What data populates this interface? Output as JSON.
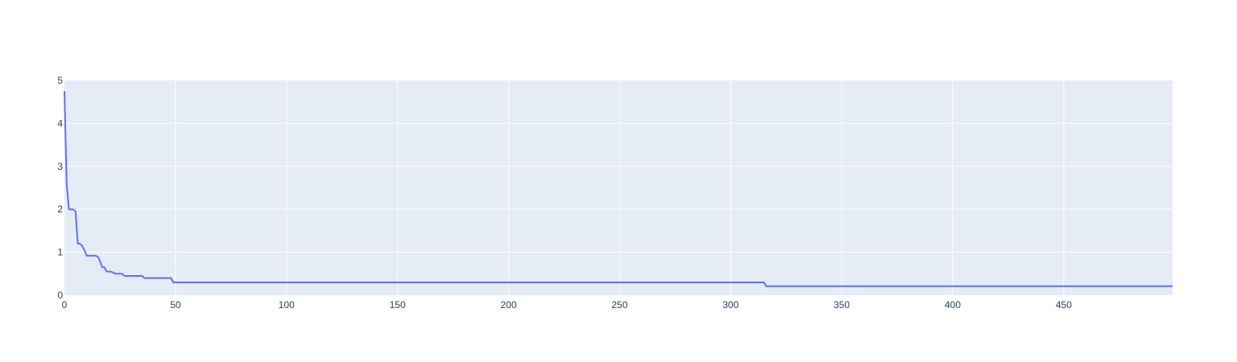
{
  "chart_data": {
    "type": "line",
    "title": "",
    "xlabel": "",
    "ylabel": "",
    "xlim": [
      0,
      499
    ],
    "ylim": [
      0,
      5
    ],
    "x_ticks": [
      0,
      50,
      100,
      150,
      200,
      250,
      300,
      350,
      400,
      450
    ],
    "y_ticks": [
      0,
      1,
      2,
      3,
      4,
      5
    ],
    "grid": true,
    "legend": "none",
    "colors": {
      "plot_background": "#E5ECF6",
      "grid": "#ffffff",
      "series": "#636EFA",
      "tick_text": "#2a3f5f"
    },
    "series": [
      {
        "points": [
          [
            0,
            4.75
          ],
          [
            1,
            2.6
          ],
          [
            2,
            2.0
          ],
          [
            4,
            2.0
          ],
          [
            5,
            1.95
          ],
          [
            6,
            1.2
          ],
          [
            7,
            1.2
          ],
          [
            8,
            1.15
          ],
          [
            9,
            1.05
          ],
          [
            10,
            0.92
          ],
          [
            14,
            0.92
          ],
          [
            15,
            0.9
          ],
          [
            16,
            0.8
          ],
          [
            17,
            0.65
          ],
          [
            18,
            0.65
          ],
          [
            19,
            0.55
          ],
          [
            21,
            0.55
          ],
          [
            23,
            0.5
          ],
          [
            26,
            0.5
          ],
          [
            27,
            0.45
          ],
          [
            35,
            0.45
          ],
          [
            36,
            0.4
          ],
          [
            48,
            0.4
          ],
          [
            49,
            0.3
          ],
          [
            315,
            0.3
          ],
          [
            316,
            0.21
          ],
          [
            499,
            0.21
          ]
        ]
      }
    ]
  }
}
